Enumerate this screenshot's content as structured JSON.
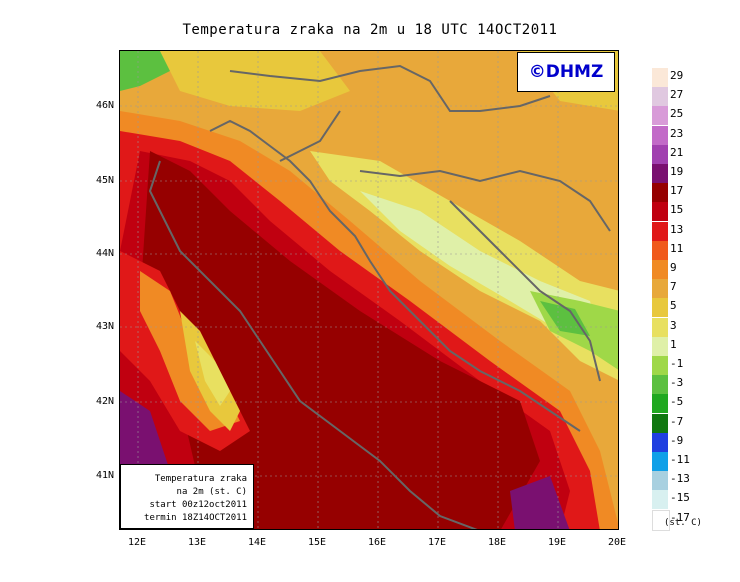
{
  "title": "Temperatura zraka na 2m u 18 UTC 14OCT2011",
  "logo": "©DHMZ",
  "info_box": {
    "line1": "Temperatura zraka",
    "line2": "na 2m (st. C)",
    "line3": "start 00z12oct2011",
    "line4": "termin 18Z14OCT2011"
  },
  "lat_labels": [
    "46N",
    "45N",
    "44N",
    "43N",
    "42N",
    "41N"
  ],
  "lon_labels": [
    "12E",
    "13E",
    "14E",
    "15E",
    "16E",
    "17E",
    "18E",
    "19E",
    "20E"
  ],
  "colorbar": {
    "unit": "(st. C)",
    "labels": [
      "29",
      "27",
      "25",
      "23",
      "21",
      "19",
      "17",
      "15",
      "13",
      "11",
      "9",
      "7",
      "5",
      "3",
      "1",
      "-1",
      "-3",
      "-5",
      "-7",
      "-9",
      "-11",
      "-13",
      "-15",
      "-17"
    ],
    "colors": [
      "#fbe8d8",
      "#e0c8e0",
      "#d89ad8",
      "#c26ac8",
      "#a140b0",
      "#7a1070",
      "#960000",
      "#c00010",
      "#e01818",
      "#f05a1c",
      "#f08a24",
      "#e8a83a",
      "#e8c83c",
      "#e8e060",
      "#dff0a8",
      "#9fd848",
      "#5cc040",
      "#20a820",
      "#107810",
      "#2040e0",
      "#10a0e8",
      "#a8d0e0",
      "#d8f0f0",
      "#ffffff"
    ]
  }
}
